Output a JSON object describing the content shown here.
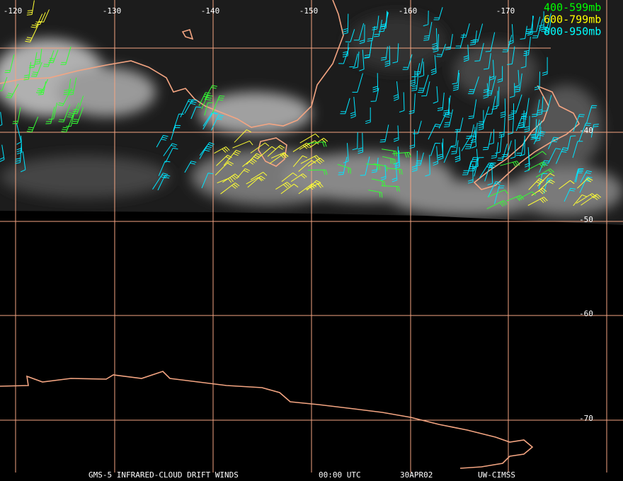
{
  "longitude_labels": [
    "-120",
    "-130",
    "-140",
    "-150",
    "-160",
    "-170"
  ],
  "latitude_labels": [
    "-40",
    "-50",
    "-60",
    "-70"
  ],
  "legend": [
    "400-599mb",
    "600-799mb",
    "800-950mb"
  ],
  "footer": [
    "GMS-5 INFRARED-CLOUD DRIFT WINDS",
    "00:00 UTC",
    "30APR02",
    "UW-CIMSS"
  ]
}
